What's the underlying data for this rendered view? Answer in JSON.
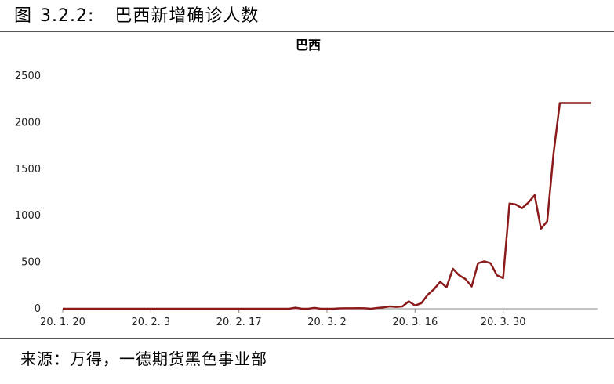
{
  "figure": {
    "label": "图",
    "number": "3.2.2:",
    "title": "巴西新增确诊人数"
  },
  "source": "来源：万得，一德期货黑色事业部",
  "chart_data": {
    "type": "line",
    "title": "巴西",
    "xlabel": "",
    "ylabel": "",
    "ylim": [
      0,
      2500
    ],
    "yticks": [
      0,
      500,
      1000,
      1500,
      2000,
      2500
    ],
    "xticks": [
      {
        "date": "2020-01-20",
        "label": "20. 1. 20"
      },
      {
        "date": "2020-02-03",
        "label": "20. 2. 3"
      },
      {
        "date": "2020-02-17",
        "label": "20. 2. 17"
      },
      {
        "date": "2020-03-02",
        "label": "20. 3. 2"
      },
      {
        "date": "2020-03-16",
        "label": "20. 3. 16"
      },
      {
        "date": "2020-03-30",
        "label": "20. 3. 30"
      }
    ],
    "xlim": [
      "2020-01-20",
      "2020-04-14"
    ],
    "grid": false,
    "series_color": "#8B1A1A",
    "series": [
      {
        "dates": [
          "2020-01-20",
          "2020-02-25",
          "2020-02-26",
          "2020-02-27",
          "2020-02-28",
          "2020-02-29",
          "2020-03-01",
          "2020-03-02",
          "2020-03-03",
          "2020-03-04",
          "2020-03-05",
          "2020-03-06",
          "2020-03-07",
          "2020-03-08",
          "2020-03-09",
          "2020-03-10",
          "2020-03-11",
          "2020-03-12",
          "2020-03-13",
          "2020-03-14",
          "2020-03-15",
          "2020-03-16",
          "2020-03-17",
          "2020-03-18",
          "2020-03-19",
          "2020-03-20",
          "2020-03-21",
          "2020-03-22",
          "2020-03-23",
          "2020-03-24",
          "2020-03-25",
          "2020-03-26",
          "2020-03-27",
          "2020-03-28",
          "2020-03-29",
          "2020-03-30",
          "2020-03-31",
          "2020-04-01",
          "2020-04-02",
          "2020-04-03",
          "2020-04-04",
          "2020-04-05",
          "2020-04-06",
          "2020-04-07",
          "2020-04-08",
          "2020-04-09",
          "2020-04-10",
          "2020-04-11",
          "2020-04-12",
          "2020-04-13"
        ],
        "values": [
          0,
          0,
          12,
          0,
          0,
          10,
          0,
          0,
          0,
          4,
          5,
          5,
          6,
          5,
          0,
          8,
          15,
          25,
          20,
          25,
          80,
          35,
          60,
          150,
          210,
          290,
          230,
          430,
          360,
          320,
          240,
          490,
          510,
          490,
          360,
          330,
          1130,
          1120,
          1080,
          1140,
          1220,
          860,
          940,
          1660,
          2210,
          2210,
          2210,
          2210,
          2210,
          2210
        ]
      }
    ]
  }
}
